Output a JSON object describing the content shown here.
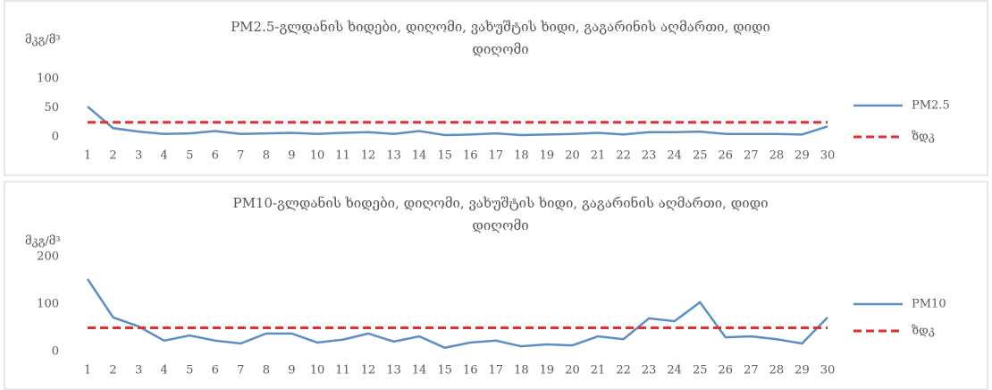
{
  "chart_data": [
    {
      "type": "line",
      "title": "PM2.5-გლდანის ხიდები, დიღომი, ვახუშტის ხიდი, გაგარინის აღმართი, დიდი დიღომი",
      "y_label": "მკგ/მ³",
      "categories": [
        "1",
        "2",
        "3",
        "4",
        "5",
        "6",
        "7",
        "8",
        "9",
        "10",
        "11",
        "12",
        "13",
        "14",
        "15",
        "16",
        "17",
        "18",
        "19",
        "20",
        "21",
        "22",
        "23",
        "24",
        "25",
        "26",
        "27",
        "28",
        "29",
        "30"
      ],
      "ylim": [
        0,
        100
      ],
      "yticks": [
        0,
        50,
        100
      ],
      "series": [
        {
          "name": "PM2.5",
          "color": "#5b8ec4",
          "dashed": false,
          "values": [
            52,
            15,
            9,
            5,
            6,
            10,
            5,
            6,
            7,
            5,
            7,
            8,
            5,
            10,
            3,
            4,
            6,
            3,
            4,
            5,
            7,
            4,
            8,
            8,
            9,
            5,
            5,
            5,
            4,
            18
          ]
        },
        {
          "name": "ზდკ",
          "color": "#e03030",
          "dashed": true,
          "values": [
            25,
            25,
            25,
            25,
            25,
            25,
            25,
            25,
            25,
            25,
            25,
            25,
            25,
            25,
            25,
            25,
            25,
            25,
            25,
            25,
            25,
            25,
            25,
            25,
            25,
            25,
            25,
            25,
            25,
            25
          ]
        }
      ]
    },
    {
      "type": "line",
      "title": "PM10-გლდანის ხიდები, დიღომი, ვახუშტის ხიდი, გაგარინის აღმართი, დიდი დიღომი",
      "y_label": "მკგ/მ³",
      "categories": [
        "1",
        "2",
        "3",
        "4",
        "5",
        "6",
        "7",
        "8",
        "9",
        "10",
        "11",
        "12",
        "13",
        "14",
        "15",
        "16",
        "17",
        "18",
        "19",
        "20",
        "21",
        "22",
        "23",
        "24",
        "25",
        "26",
        "27",
        "28",
        "29",
        "30"
      ],
      "ylim": [
        0,
        200
      ],
      "yticks": [
        0,
        100,
        200
      ],
      "series": [
        {
          "name": "PM10",
          "color": "#5b8ec4",
          "dashed": false,
          "values": [
            153,
            72,
            53,
            23,
            34,
            23,
            17,
            38,
            38,
            19,
            25,
            38,
            21,
            32,
            8,
            19,
            23,
            11,
            15,
            13,
            32,
            26,
            70,
            64,
            104,
            30,
            32,
            26,
            17,
            72
          ]
        },
        {
          "name": "ზდკ",
          "color": "#e03030",
          "dashed": true,
          "values": [
            50,
            50,
            50,
            50,
            50,
            50,
            50,
            50,
            50,
            50,
            50,
            50,
            50,
            50,
            50,
            50,
            50,
            50,
            50,
            50,
            50,
            50,
            50,
            50,
            50,
            50,
            50,
            50,
            50,
            50
          ]
        }
      ]
    }
  ]
}
